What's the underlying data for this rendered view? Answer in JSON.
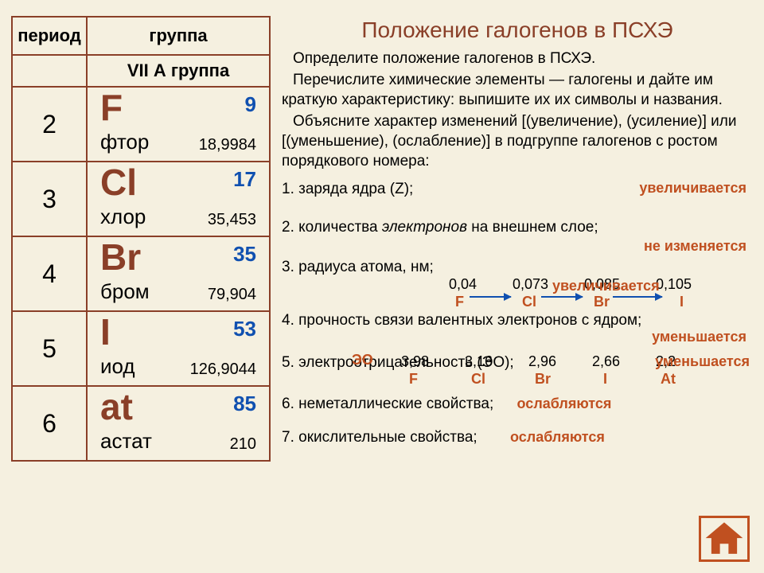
{
  "title": "Положение галогенов в ПСХЭ",
  "table": {
    "head_period": "период",
    "head_group": "группа",
    "group_sub": "VII А группа",
    "rows": [
      {
        "period": "2",
        "sym": "F",
        "name": "фтор",
        "z": "9",
        "mass": "18,9984"
      },
      {
        "period": "3",
        "sym": "Cl",
        "name": "хлор",
        "z": "17",
        "mass": "35,453"
      },
      {
        "period": "4",
        "sym": "Br",
        "name": "бром",
        "z": "35",
        "mass": "79,904"
      },
      {
        "period": "5",
        "sym": "I",
        "name": "иод",
        "z": "53",
        "mass": "126,9044"
      },
      {
        "period": "6",
        "sym": "at",
        "name": "астат",
        "z": "85",
        "mass": "210"
      }
    ]
  },
  "intro": {
    "p1": "Определите положение галогенов в ПСХЭ.",
    "p2a": "Перечислите химические элементы — галогены и дайте им краткую характеристику: выпишите их их символы и названия.",
    "p3a": "Объясните характер изменений [(увеличение), (усиление)] или [(уменьшение), (ослабление)] в подгруппе галогенов с ростом порядкового номера:"
  },
  "q1": {
    "text": "1.   заряда ядра (Z);",
    "ans": "увеличивается"
  },
  "q2": {
    "text": "2. количества",
    "textit": "электронов",
    "text2": " на внешнем слое;",
    "ans": "не изменяется"
  },
  "q3": {
    "text": "3. радиуса атома, нм;",
    "ans": "увеличивается",
    "vals": [
      "0,04",
      "0,073",
      "0,085",
      "0,105"
    ],
    "syms": [
      "F",
      "Cl",
      "Br",
      "I"
    ]
  },
  "q4": {
    "text": "4. прочность связи валентных электронов с ядром;",
    "ans": "уменьшается"
  },
  "q5": {
    "text": "5. электроотрицательность (ЭО);",
    "label": "ЭО",
    "ans": "уменьшается",
    "vals": [
      "3,98",
      "3,16",
      "2,96",
      "2,66",
      "2,2"
    ],
    "syms": [
      "F",
      "Cl",
      "Br",
      "I",
      "At"
    ]
  },
  "q6": {
    "text": "6. неметаллические свойства;",
    "ans": "ослабляются"
  },
  "q7": {
    "text": "7. окислительные свойства;",
    "ans": "ослабляются"
  },
  "colors": {
    "accent": "#8a3f28",
    "answer": "#c05020",
    "atomic_number": "#1050b0",
    "background": "#f5f0e0"
  }
}
